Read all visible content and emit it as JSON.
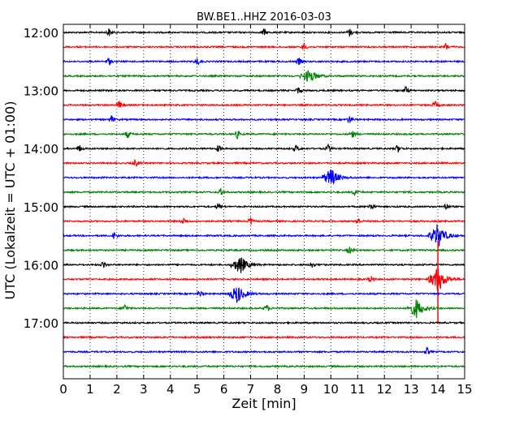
{
  "chart_data": {
    "type": "line",
    "title": "BW.BE1..HHZ 2016-03-03",
    "xlabel": "Zeit  [min]",
    "ylabel": "UTC (Lokalzeit = UTC + 01:00)",
    "xlim": [
      0,
      15
    ],
    "x_ticks": [
      "0",
      "1",
      "2",
      "3",
      "4",
      "5",
      "6",
      "7",
      "8",
      "9",
      "10",
      "11",
      "12",
      "13",
      "14",
      "15"
    ],
    "y_tick_labels": [
      "12:00",
      "13:00",
      "14:00",
      "15:00",
      "16:00",
      "17:00"
    ],
    "grid": "vertical dotted",
    "series_colors": [
      "#000000",
      "#ff0000",
      "#0000ff",
      "#008000"
    ],
    "rows": [
      {
        "start": "12:00",
        "events": [
          1.7,
          7.5,
          10.7
        ]
      },
      {
        "start": "12:15",
        "events": [
          9.0,
          14.3
        ]
      },
      {
        "start": "12:30",
        "events": [
          1.7,
          5.0,
          8.8
        ]
      },
      {
        "start": "12:45",
        "events": [
          9.2
        ]
      },
      {
        "start": "13:00",
        "events": [
          8.8,
          12.8
        ]
      },
      {
        "start": "13:15",
        "events": [
          2.1,
          13.9
        ]
      },
      {
        "start": "13:30",
        "events": [
          1.8,
          10.7
        ]
      },
      {
        "start": "13:45",
        "events": [
          2.4,
          6.5,
          10.8
        ]
      },
      {
        "start": "14:00",
        "events": [
          0.6,
          5.8,
          8.7,
          9.9,
          12.5
        ]
      },
      {
        "start": "14:15",
        "events": [
          2.7
        ]
      },
      {
        "start": "14:30",
        "events": [
          10.0
        ]
      },
      {
        "start": "14:45",
        "events": [
          5.9,
          10.9
        ]
      },
      {
        "start": "15:00",
        "events": [
          5.8,
          11.5,
          14.3
        ]
      },
      {
        "start": "15:15",
        "events": [
          4.5,
          7.0,
          11.0
        ]
      },
      {
        "start": "15:30",
        "events": [
          1.9,
          14.0
        ]
      },
      {
        "start": "15:45",
        "events": [
          10.7
        ]
      },
      {
        "start": "16:00",
        "events": [
          1.5,
          6.6,
          9.3
        ]
      },
      {
        "start": "16:15",
        "events": [
          11.5,
          14.0
        ]
      },
      {
        "start": "16:30",
        "events": [
          5.1,
          6.5
        ]
      },
      {
        "start": "16:45",
        "events": [
          2.3,
          7.6,
          13.2
        ]
      },
      {
        "start": "17:00",
        "events": []
      },
      {
        "start": "17:15",
        "events": []
      },
      {
        "start": "17:30",
        "events": [
          13.6
        ]
      },
      {
        "start": "17:45",
        "events": []
      }
    ],
    "large_events": [
      {
        "row": "14:30",
        "x": 10.0,
        "amplitude": "medium"
      },
      {
        "row": "15:30",
        "x": 14.0,
        "amplitude": "large"
      },
      {
        "row": "16:00",
        "x": 6.6,
        "amplitude": "medium"
      },
      {
        "row": "16:15",
        "x": 14.0,
        "amplitude": "very large"
      },
      {
        "row": "16:30",
        "x": 6.5,
        "amplitude": "medium"
      },
      {
        "row": "16:45",
        "x": 13.2,
        "amplitude": "medium"
      },
      {
        "row": "12:45",
        "x": 9.2,
        "amplitude": "small"
      }
    ]
  }
}
